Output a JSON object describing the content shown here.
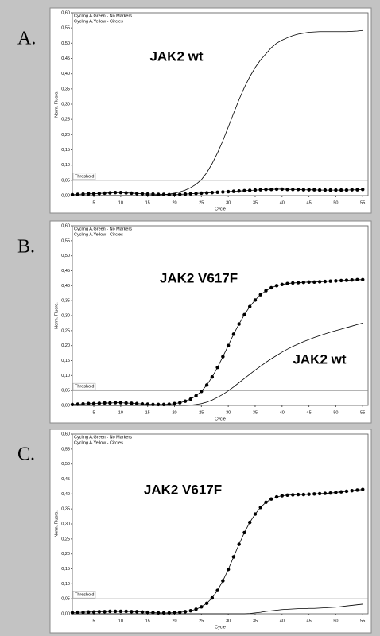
{
  "chart_data": [
    {
      "type": "line",
      "panel_label": "A.",
      "x_label": "Cycle",
      "y_label": "Norm. Fluoro.",
      "threshold": 0.05,
      "threshold_label": "Threshold",
      "annotations": [
        "JAK2 wt"
      ],
      "x": [
        1,
        2,
        3,
        4,
        5,
        6,
        7,
        8,
        9,
        10,
        11,
        12,
        13,
        14,
        15,
        16,
        17,
        18,
        19,
        20,
        21,
        22,
        23,
        24,
        25,
        26,
        27,
        28,
        29,
        30,
        31,
        32,
        33,
        34,
        35,
        36,
        37,
        38,
        39,
        40,
        41,
        42,
        43,
        44,
        45,
        46,
        47,
        48,
        49,
        50,
        51,
        52,
        53,
        54,
        55
      ],
      "xlim": [
        1,
        56
      ],
      "xticks": [
        5,
        10,
        15,
        20,
        25,
        30,
        35,
        40,
        45,
        50,
        55
      ],
      "ylim": [
        0,
        0.6
      ],
      "yticks": [
        {
          "value": 0,
          "label": "0,00"
        },
        {
          "value": 0.05,
          "label": "0,05"
        },
        {
          "value": 0.1,
          "label": "0,10"
        },
        {
          "value": 0.15,
          "label": "0,15"
        },
        {
          "value": 0.2,
          "label": "0,20"
        },
        {
          "value": 0.25,
          "label": "0,25"
        },
        {
          "value": 0.3,
          "label": "0,30"
        },
        {
          "value": 0.35,
          "label": "0,35"
        },
        {
          "value": 0.4,
          "label": "0,40"
        },
        {
          "value": 0.45,
          "label": "0,45"
        },
        {
          "value": 0.5,
          "label": "0,50"
        },
        {
          "value": 0.55,
          "label": "0,55"
        },
        {
          "value": 0.6,
          "label": "0,60"
        }
      ],
      "series": [
        {
          "name": "Cycling A.Green - No Markers",
          "color": "#000000",
          "marker": "none",
          "values": [
            0,
            0,
            0,
            0,
            0,
            0,
            0,
            0,
            0,
            0,
            0,
            0,
            0,
            0,
            0,
            0.001,
            0.002,
            0.003,
            0.005,
            0.008,
            0.012,
            0.018,
            0.026,
            0.037,
            0.052,
            0.075,
            0.105,
            0.14,
            0.18,
            0.225,
            0.27,
            0.315,
            0.355,
            0.39,
            0.42,
            0.445,
            0.465,
            0.485,
            0.5,
            0.51,
            0.518,
            0.525,
            0.53,
            0.533,
            0.536,
            0.537,
            0.538,
            0.538,
            0.538,
            0.538,
            0.538,
            0.538,
            0.539,
            0.54,
            0.542
          ]
        },
        {
          "name": "Cycling A.Yellow - Circles",
          "color": "#000000",
          "marker": "circle",
          "values": [
            0.003,
            0.004,
            0.005,
            0.006,
            0.006,
            0.007,
            0.008,
            0.009,
            0.01,
            0.01,
            0.009,
            0.008,
            0.007,
            0.006,
            0.005,
            0.005,
            0.004,
            0.004,
            0.003,
            0.003,
            0.004,
            0.005,
            0.006,
            0.007,
            0.008,
            0.009,
            0.01,
            0.011,
            0.012,
            0.013,
            0.014,
            0.015,
            0.016,
            0.017,
            0.018,
            0.019,
            0.02,
            0.02,
            0.021,
            0.021,
            0.02,
            0.02,
            0.02,
            0.019,
            0.019,
            0.019,
            0.018,
            0.018,
            0.018,
            0.018,
            0.018,
            0.018,
            0.019,
            0.019,
            0.02
          ]
        }
      ]
    },
    {
      "type": "line",
      "panel_label": "B.",
      "x_label": "Cycle",
      "y_label": "Norm. Fluoro.",
      "threshold": 0.05,
      "threshold_label": "Threshold",
      "annotations": [
        "JAK2 V617F",
        "JAK2 wt"
      ],
      "x": [
        1,
        2,
        3,
        4,
        5,
        6,
        7,
        8,
        9,
        10,
        11,
        12,
        13,
        14,
        15,
        16,
        17,
        18,
        19,
        20,
        21,
        22,
        23,
        24,
        25,
        26,
        27,
        28,
        29,
        30,
        31,
        32,
        33,
        34,
        35,
        36,
        37,
        38,
        39,
        40,
        41,
        42,
        43,
        44,
        45,
        46,
        47,
        48,
        49,
        50,
        51,
        52,
        53,
        54,
        55
      ],
      "xlim": [
        1,
        56
      ],
      "xticks": [
        5,
        10,
        15,
        20,
        25,
        30,
        35,
        40,
        45,
        50,
        55
      ],
      "ylim": [
        0,
        0.6
      ],
      "yticks": [
        {
          "value": 0,
          "label": "0,00"
        },
        {
          "value": 0.05,
          "label": "0,05"
        },
        {
          "value": 0.1,
          "label": "0,10"
        },
        {
          "value": 0.15,
          "label": "0,15"
        },
        {
          "value": 0.2,
          "label": "0,20"
        },
        {
          "value": 0.25,
          "label": "0,25"
        },
        {
          "value": 0.3,
          "label": "0,30"
        },
        {
          "value": 0.35,
          "label": "0,35"
        },
        {
          "value": 0.4,
          "label": "0,40"
        },
        {
          "value": 0.45,
          "label": "0,45"
        },
        {
          "value": 0.5,
          "label": "0,50"
        },
        {
          "value": 0.55,
          "label": "0,55"
        },
        {
          "value": 0.6,
          "label": "0,60"
        }
      ],
      "series": [
        {
          "name": "Cycling A.Green - No Markers",
          "color": "#000000",
          "marker": "none",
          "values": [
            0,
            0,
            0,
            0,
            0,
            0,
            0,
            0,
            0,
            0,
            0,
            0,
            0,
            0,
            0,
            0,
            0,
            0,
            0,
            0,
            0,
            0,
            0.001,
            0.003,
            0.006,
            0.011,
            0.018,
            0.027,
            0.037,
            0.049,
            0.062,
            0.076,
            0.09,
            0.104,
            0.118,
            0.131,
            0.144,
            0.156,
            0.167,
            0.178,
            0.188,
            0.197,
            0.205,
            0.213,
            0.22,
            0.227,
            0.233,
            0.239,
            0.245,
            0.25,
            0.255,
            0.26,
            0.265,
            0.27,
            0.275
          ]
        },
        {
          "name": "Cycling A.Yellow - Circles",
          "color": "#000000",
          "marker": "circle",
          "values": [
            0.003,
            0.004,
            0.005,
            0.006,
            0.006,
            0.007,
            0.008,
            0.008,
            0.009,
            0.009,
            0.008,
            0.007,
            0.006,
            0.005,
            0.004,
            0.003,
            0.003,
            0.003,
            0.004,
            0.006,
            0.009,
            0.014,
            0.021,
            0.032,
            0.047,
            0.068,
            0.095,
            0.127,
            0.163,
            0.2,
            0.238,
            0.272,
            0.303,
            0.33,
            0.352,
            0.37,
            0.383,
            0.393,
            0.4,
            0.404,
            0.407,
            0.409,
            0.41,
            0.411,
            0.412,
            0.412,
            0.413,
            0.414,
            0.415,
            0.416,
            0.417,
            0.418,
            0.419,
            0.42,
            0.42
          ]
        }
      ]
    },
    {
      "type": "line",
      "panel_label": "C.",
      "x_label": "Cycle",
      "y_label": "Norm. Fluoro.",
      "threshold": 0.05,
      "threshold_label": "Threshold",
      "annotations": [
        "JAK2 V617F"
      ],
      "x": [
        1,
        2,
        3,
        4,
        5,
        6,
        7,
        8,
        9,
        10,
        11,
        12,
        13,
        14,
        15,
        16,
        17,
        18,
        19,
        20,
        21,
        22,
        23,
        24,
        25,
        26,
        27,
        28,
        29,
        30,
        31,
        32,
        33,
        34,
        35,
        36,
        37,
        38,
        39,
        40,
        41,
        42,
        43,
        44,
        45,
        46,
        47,
        48,
        49,
        50,
        51,
        52,
        53,
        54,
        55
      ],
      "xlim": [
        1,
        56
      ],
      "xticks": [
        5,
        10,
        15,
        20,
        25,
        30,
        35,
        40,
        45,
        50,
        55
      ],
      "ylim": [
        0,
        0.6
      ],
      "yticks": [
        {
          "value": 0,
          "label": "0,00"
        },
        {
          "value": 0.05,
          "label": "0,05"
        },
        {
          "value": 0.1,
          "label": "0,10"
        },
        {
          "value": 0.15,
          "label": "0,15"
        },
        {
          "value": 0.2,
          "label": "0,20"
        },
        {
          "value": 0.25,
          "label": "0,25"
        },
        {
          "value": 0.3,
          "label": "0,30"
        },
        {
          "value": 0.35,
          "label": "0,35"
        },
        {
          "value": 0.4,
          "label": "0,40"
        },
        {
          "value": 0.45,
          "label": "0,45"
        },
        {
          "value": 0.5,
          "label": "0,50"
        },
        {
          "value": 0.55,
          "label": "0,55"
        },
        {
          "value": 0.6,
          "label": "0,60"
        }
      ],
      "series": [
        {
          "name": "Cycling A.Green - No Markers",
          "color": "#000000",
          "marker": "none",
          "values": [
            0,
            0,
            0,
            0,
            0,
            0,
            0,
            0,
            0,
            0,
            0,
            0,
            0,
            0,
            0,
            0,
            0,
            0,
            0,
            0,
            0,
            0,
            0,
            0,
            0,
            0,
            0,
            0,
            0,
            0,
            0,
            0,
            0,
            0.001,
            0.003,
            0.005,
            0.008,
            0.01,
            0.012,
            0.014,
            0.015,
            0.016,
            0.017,
            0.017,
            0.018,
            0.018,
            0.019,
            0.02,
            0.021,
            0.022,
            0.024,
            0.026,
            0.028,
            0.03,
            0.032
          ]
        },
        {
          "name": "Cycling A.Yellow - Circles",
          "color": "#000000",
          "marker": "circle",
          "values": [
            0.004,
            0.005,
            0.005,
            0.006,
            0.006,
            0.007,
            0.007,
            0.008,
            0.008,
            0.008,
            0.008,
            0.007,
            0.007,
            0.006,
            0.005,
            0.004,
            0.003,
            0.003,
            0.003,
            0.004,
            0.005,
            0.007,
            0.01,
            0.015,
            0.023,
            0.035,
            0.053,
            0.078,
            0.11,
            0.148,
            0.19,
            0.232,
            0.271,
            0.305,
            0.333,
            0.355,
            0.372,
            0.383,
            0.39,
            0.394,
            0.396,
            0.397,
            0.398,
            0.398,
            0.399,
            0.4,
            0.401,
            0.402,
            0.403,
            0.405,
            0.407,
            0.409,
            0.411,
            0.413,
            0.415
          ]
        }
      ]
    }
  ]
}
